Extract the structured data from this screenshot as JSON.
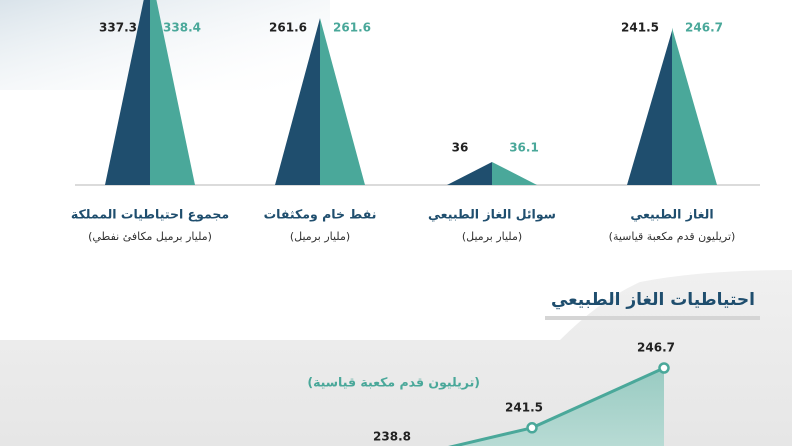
{
  "chart_data": [
    {
      "type": "triangle-bar",
      "categories": [
        "الغاز الطبيعي",
        "سوائل الغاز الطبيعي",
        "نفط خام ومكثفات",
        "مجموع احتياطيات المملكة"
      ],
      "category_units": [
        "(تريليون قدم مكعبة قياسية)",
        "(مليار برميل)",
        "(مليار برميل)",
        "(مليار برميل مكافئ نفطي)"
      ],
      "series": [
        {
          "color": "#1f4e6e",
          "values": [
            241.5,
            36,
            261.6,
            337.3
          ]
        },
        {
          "color": "#4aa89a",
          "values": [
            246.7,
            36.1,
            261.6,
            338.4
          ]
        }
      ]
    },
    {
      "type": "area-line",
      "title": "احتياطيات الغاز الطبيعي",
      "subtitle": "(تريليون قدم مكعبة قياسية)",
      "categories": [
        null,
        null,
        null
      ],
      "color": "#4aa89a",
      "values": [
        238.8,
        241.5,
        246.7
      ]
    }
  ]
}
